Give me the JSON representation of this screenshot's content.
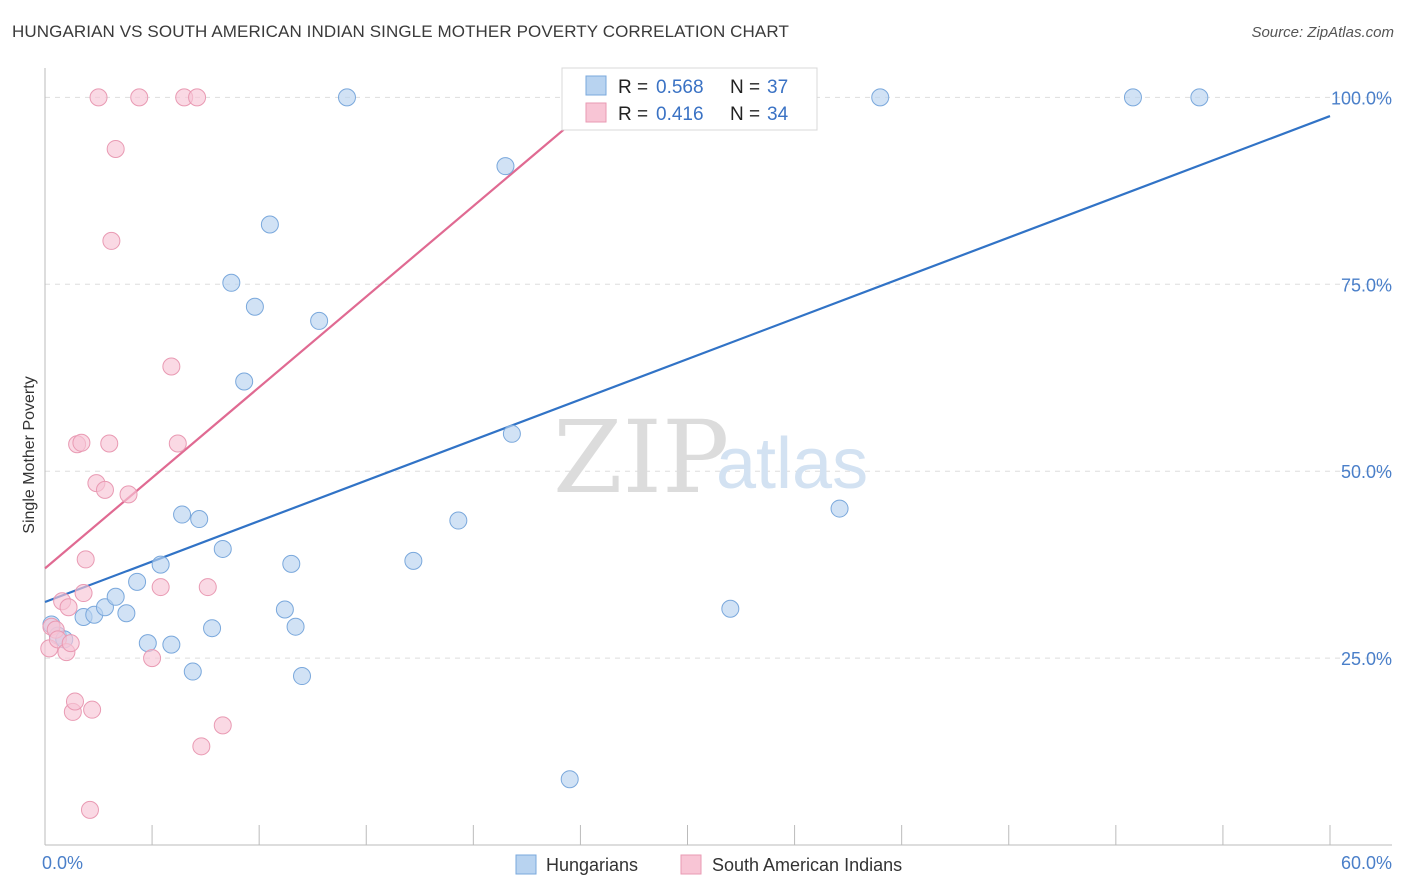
{
  "title": "HUNGARIAN VS SOUTH AMERICAN INDIAN SINGLE MOTHER POVERTY CORRELATION CHART",
  "source": "Source: ZipAtlas.com",
  "watermark": {
    "zip": "ZIP",
    "atlas": "atlas"
  },
  "colors": {
    "hungarians_fill": "#b8d3f0",
    "hungarians_stroke": "#7aa8dc",
    "hungarians_line": "#3173c6",
    "sai_fill": "#f8c5d5",
    "sai_stroke": "#e99ab3",
    "sai_line": "#e06a92",
    "tick_text": "#4a7fc9",
    "grid": "#dddddd"
  },
  "legend": {
    "rows": [
      {
        "r_label": "R = ",
        "r_value": "0.568",
        "n_label": "N = ",
        "n_value": "37"
      },
      {
        "r_label": "R = ",
        "r_value": "0.416",
        "n_label": "N = ",
        "n_value": "34"
      }
    ]
  },
  "chart_data": {
    "type": "scatter",
    "title": "HUNGARIAN VS SOUTH AMERICAN INDIAN SINGLE MOTHER POVERTY CORRELATION CHART",
    "xlabel": "",
    "ylabel": "Single Mother Poverty",
    "xlim": [
      0,
      60
    ],
    "ylim": [
      0,
      105
    ],
    "x_tick_labels": [
      "0.0%",
      "60.0%"
    ],
    "y_ticks": [
      25,
      50,
      75,
      100
    ],
    "y_tick_labels": [
      "25.0%",
      "50.0%",
      "75.0%",
      "100.0%"
    ],
    "grid": true,
    "legend_position": "bottom",
    "series": [
      {
        "name": "Hungarians",
        "r": 0.568,
        "n": 37,
        "trend": {
          "x": [
            0,
            60
          ],
          "y": [
            32.5,
            97.5
          ]
        },
        "points": [
          [
            0.3,
            29.5
          ],
          [
            0.6,
            28.0
          ],
          [
            0.9,
            27.5
          ],
          [
            1.8,
            30.5
          ],
          [
            2.3,
            30.8
          ],
          [
            2.8,
            31.8
          ],
          [
            3.3,
            33.2
          ],
          [
            3.8,
            31.0
          ],
          [
            4.3,
            35.2
          ],
          [
            4.8,
            27.0
          ],
          [
            5.4,
            37.5
          ],
          [
            5.9,
            26.8
          ],
          [
            6.4,
            44.2
          ],
          [
            6.9,
            23.2
          ],
          [
            7.2,
            43.6
          ],
          [
            7.8,
            29.0
          ],
          [
            8.3,
            39.6
          ],
          [
            8.7,
            75.2
          ],
          [
            9.3,
            62.0
          ],
          [
            9.8,
            72.0
          ],
          [
            10.5,
            83.0
          ],
          [
            11.2,
            31.5
          ],
          [
            11.5,
            37.6
          ],
          [
            11.7,
            29.2
          ],
          [
            12.0,
            22.6
          ],
          [
            12.8,
            70.1
          ],
          [
            14.1,
            100
          ],
          [
            17.2,
            38.0
          ],
          [
            19.3,
            43.4
          ],
          [
            21.5,
            90.8
          ],
          [
            21.8,
            55.0
          ],
          [
            24.5,
            8.8
          ],
          [
            32.0,
            31.6
          ],
          [
            37.1,
            45.0
          ],
          [
            39.0,
            100
          ],
          [
            50.8,
            100
          ],
          [
            53.9,
            100
          ]
        ]
      },
      {
        "name": "South American Indians",
        "r": 0.416,
        "n": 34,
        "trend": {
          "x": [
            0,
            26
          ],
          "y": [
            37.0,
            100.0
          ]
        },
        "points": [
          [
            0.2,
            26.3
          ],
          [
            0.3,
            29.2
          ],
          [
            0.5,
            28.8
          ],
          [
            0.6,
            27.5
          ],
          [
            0.8,
            32.6
          ],
          [
            1.0,
            25.8
          ],
          [
            1.1,
            31.8
          ],
          [
            1.2,
            27.0
          ],
          [
            1.3,
            17.8
          ],
          [
            1.4,
            19.2
          ],
          [
            1.5,
            53.6
          ],
          [
            1.7,
            53.8
          ],
          [
            1.8,
            33.7
          ],
          [
            1.9,
            38.2
          ],
          [
            2.1,
            4.7
          ],
          [
            2.2,
            18.1
          ],
          [
            2.4,
            48.4
          ],
          [
            2.5,
            100
          ],
          [
            2.8,
            47.5
          ],
          [
            3.0,
            53.7
          ],
          [
            3.1,
            80.8
          ],
          [
            3.3,
            93.1
          ],
          [
            3.9,
            46.9
          ],
          [
            4.4,
            100
          ],
          [
            5.0,
            25.0
          ],
          [
            5.4,
            34.5
          ],
          [
            5.9,
            64.0
          ],
          [
            6.2,
            53.7
          ],
          [
            6.5,
            100
          ],
          [
            7.1,
            100
          ],
          [
            7.3,
            13.2
          ],
          [
            7.6,
            34.5
          ],
          [
            8.3,
            16.0
          ],
          [
            28.5,
            100
          ]
        ]
      }
    ]
  }
}
